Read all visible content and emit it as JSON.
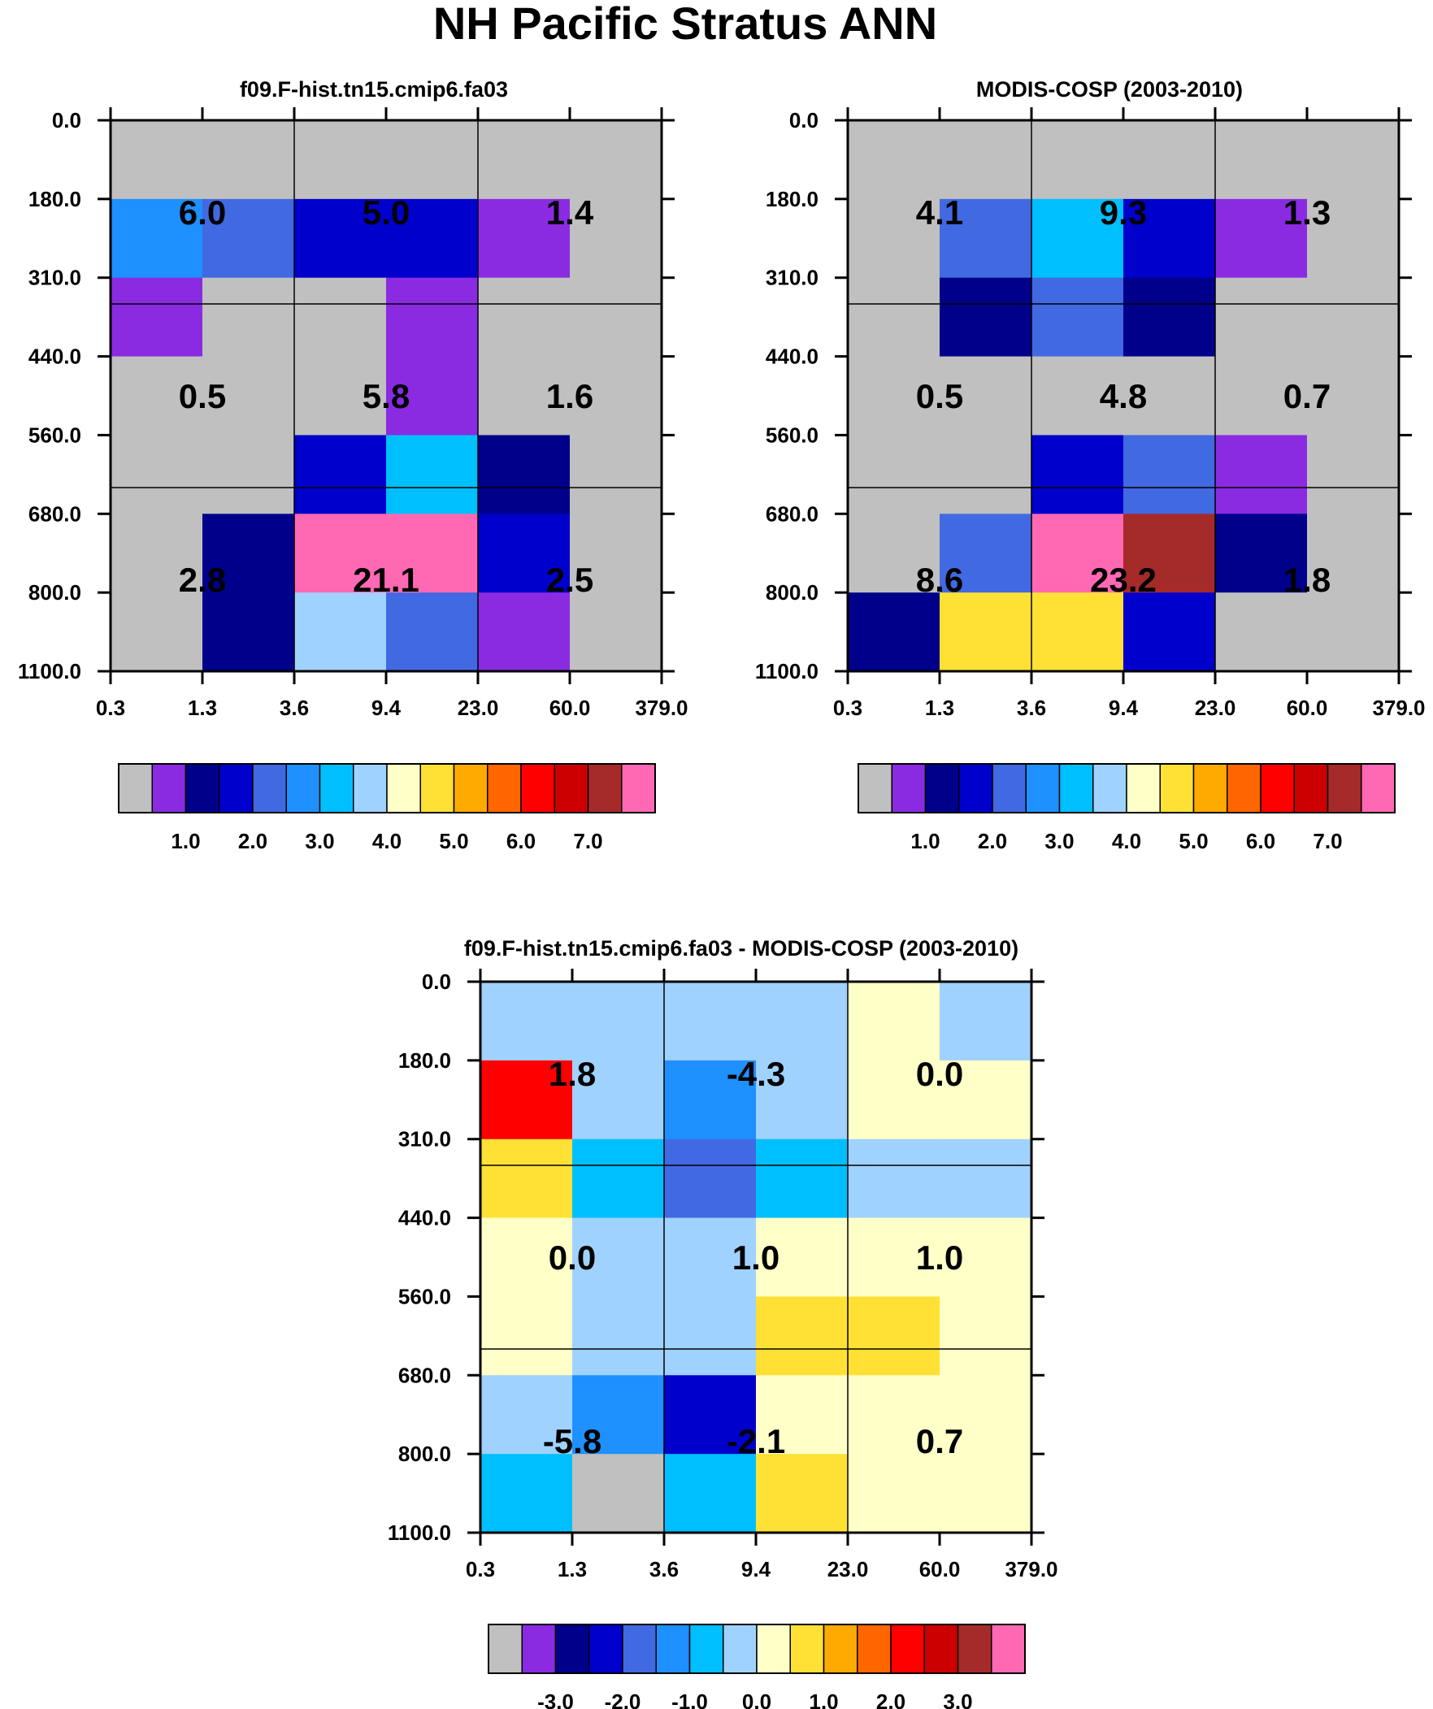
{
  "title": "NH Pacific Stratus ANN",
  "palette": {
    "bg": "#ffffff",
    "missing": "#c0c0c0",
    "colors": [
      "#c0c0c0",
      "#8a2be2",
      "#00008b",
      "#0000cd",
      "#4169e1",
      "#1e90ff",
      "#00bfff",
      "#a0d2ff",
      "#ffffc8",
      "#ffe135",
      "#ffaa00",
      "#ff6600",
      "#ff0000",
      "#cc0000",
      "#a52a2a",
      "#ff69b4"
    ]
  },
  "chart_data": [
    {
      "type": "heatmap",
      "title": "f09.F-hist.tn15.cmip6.fa03",
      "x_ticks": [
        "0.3",
        "1.3",
        "3.6",
        "9.4",
        "23.0",
        "60.0",
        "379.0"
      ],
      "y_ticks": [
        "0.0",
        "180.0",
        "310.0",
        "440.0",
        "560.0",
        "680.0",
        "800.0",
        "1100.0"
      ],
      "cells": [
        [
          0,
          0,
          0,
          0,
          0,
          0
        ],
        [
          5,
          4,
          3,
          3,
          1,
          0
        ],
        [
          1,
          0,
          0,
          1,
          0,
          0
        ],
        [
          0,
          0,
          0,
          1,
          0,
          0
        ],
        [
          0,
          0,
          3,
          6,
          2,
          0
        ],
        [
          0,
          2,
          15,
          15,
          3,
          0
        ],
        [
          0,
          2,
          7,
          4,
          1,
          0
        ]
      ],
      "labels": [
        [
          "6.0",
          "5.0",
          "1.4"
        ],
        [
          "0.5",
          "5.8",
          "1.6"
        ],
        [
          "2.8",
          "21.1",
          "2.5"
        ]
      ],
      "colorbar_labels": [
        "1.0",
        "2.0",
        "3.0",
        "4.0",
        "5.0",
        "6.0",
        "7.0"
      ]
    },
    {
      "type": "heatmap",
      "title": "MODIS-COSP (2003-2010)",
      "x_ticks": [
        "0.3",
        "1.3",
        "3.6",
        "9.4",
        "23.0",
        "60.0",
        "379.0"
      ],
      "y_ticks": [
        "0.0",
        "180.0",
        "310.0",
        "440.0",
        "560.0",
        "680.0",
        "800.0",
        "1100.0"
      ],
      "cells": [
        [
          0,
          0,
          0,
          0,
          0,
          0
        ],
        [
          0,
          4,
          6,
          3,
          1,
          0
        ],
        [
          0,
          2,
          4,
          2,
          0,
          0
        ],
        [
          0,
          0,
          0,
          0,
          0,
          0
        ],
        [
          0,
          0,
          3,
          4,
          1,
          0
        ],
        [
          0,
          4,
          15,
          14,
          2,
          0
        ],
        [
          2,
          9,
          9,
          3,
          0,
          0
        ]
      ],
      "labels": [
        [
          "4.1",
          "9.3",
          "1.3"
        ],
        [
          "0.5",
          "4.8",
          "0.7"
        ],
        [
          "8.6",
          "23.2",
          "1.8"
        ]
      ],
      "colorbar_labels": [
        "1.0",
        "2.0",
        "3.0",
        "4.0",
        "5.0",
        "6.0",
        "7.0"
      ]
    },
    {
      "type": "heatmap",
      "title": "f09.F-hist.tn15.cmip6.fa03 - MODIS-COSP (2003-2010)",
      "x_ticks": [
        "0.3",
        "1.3",
        "3.6",
        "9.4",
        "23.0",
        "60.0",
        "379.0"
      ],
      "y_ticks": [
        "0.0",
        "180.0",
        "310.0",
        "440.0",
        "560.0",
        "680.0",
        "800.0",
        "1100.0"
      ],
      "cells": [
        [
          7,
          7,
          7,
          7,
          8,
          7
        ],
        [
          12,
          7,
          5,
          7,
          8,
          8
        ],
        [
          9,
          6,
          4,
          6,
          7,
          7
        ],
        [
          8,
          7,
          7,
          8,
          8,
          8
        ],
        [
          8,
          7,
          7,
          9,
          9,
          8
        ],
        [
          7,
          5,
          3,
          8,
          8,
          8
        ],
        [
          6,
          0,
          6,
          9,
          8,
          8
        ]
      ],
      "labels": [
        [
          "1.8",
          "-4.3",
          "0.0"
        ],
        [
          "0.0",
          "1.0",
          "1.0"
        ],
        [
          "-5.8",
          "-2.1",
          "0.7"
        ]
      ],
      "colorbar_labels": [
        "-3.0",
        "-2.0",
        "-1.0",
        "0.0",
        "1.0",
        "2.0",
        "3.0"
      ]
    }
  ]
}
